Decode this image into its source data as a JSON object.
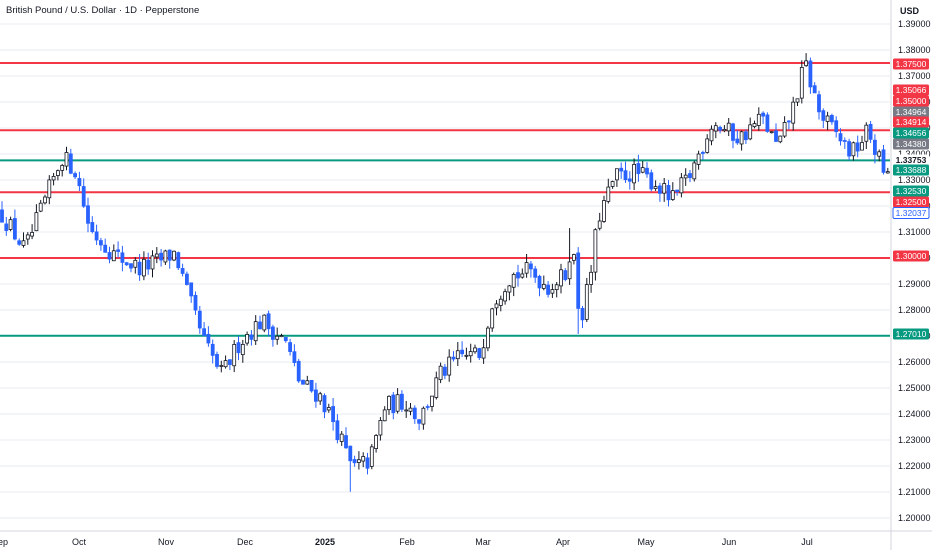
{
  "header": {
    "title": "British Pound / U.S. Dollar · 1D · Pepperstone",
    "currency": "USD"
  },
  "colors": {
    "up": "#ffffff",
    "up_border": "#131722",
    "down": "#2962ff",
    "red_line": "#f23645",
    "green_line": "#089981",
    "gray_tag": "#787b86",
    "grid": "#e9ebf0"
  },
  "chart_data": {
    "type": "candlestick",
    "title": "British Pound / U.S. Dollar · 1D · Pepperstone",
    "ylabel": "USD",
    "ylim": [
      1.195,
      1.395
    ],
    "yticks": [
      "1.39000",
      "1.38000",
      "1.37000",
      "1.36000",
      "1.35000",
      "1.34000",
      "1.33000",
      "1.32000",
      "1.31000",
      "1.30000",
      "1.29000",
      "1.28000",
      "1.27000",
      "1.26000",
      "1.25000",
      "1.24000",
      "1.23000",
      "1.22000",
      "1.21000",
      "1.20000"
    ],
    "x_labels": [
      "Sep",
      "Oct",
      "Nov",
      "Dec",
      "2025",
      "Feb",
      "Mar",
      "Apr",
      "May",
      "Jun",
      "Jul"
    ],
    "grid": true,
    "horizontal_levels": [
      {
        "value": 1.375,
        "color": "red"
      },
      {
        "value": 1.34914,
        "color": "red"
      },
      {
        "value": 1.33753,
        "color": "green"
      },
      {
        "value": 1.3253,
        "color": "red"
      },
      {
        "value": 1.3,
        "color": "red"
      },
      {
        "value": 1.2701,
        "color": "green"
      }
    ],
    "price_tags": [
      {
        "label": "1.37500",
        "value": 1.375,
        "style": "red"
      },
      {
        "label": "1.35066",
        "value": 1.35066,
        "style": "red"
      },
      {
        "label": "1.35000",
        "value": 1.35,
        "style": "red"
      },
      {
        "label": "1.34964",
        "value": 1.34964,
        "style": "gray"
      },
      {
        "label": "1.34914",
        "value": 1.34914,
        "style": "red"
      },
      {
        "label": "1.34656",
        "value": 1.34656,
        "style": "green"
      },
      {
        "label": "1.34380",
        "value": 1.3438,
        "style": "gray"
      },
      {
        "label": "1.33753",
        "value": 1.33753,
        "style": "plain"
      },
      {
        "label": "1.33688",
        "value": 1.33688,
        "style": "green"
      },
      {
        "label": "1.32530",
        "value": 1.3253,
        "style": "green"
      },
      {
        "label": "1.32500",
        "value": 1.325,
        "style": "red"
      },
      {
        "label": "1.32037",
        "value": 1.32037,
        "style": "outline"
      },
      {
        "label": "1.30000",
        "value": 1.3,
        "style": "red"
      },
      {
        "label": "1.27010",
        "value": 1.2701,
        "style": "green"
      }
    ],
    "series": [
      {
        "waypoints": [
          {
            "x": 0,
            "close": 1.318
          },
          {
            "x": 10,
            "close": 1.312
          },
          {
            "x": 25,
            "close": 1.303
          },
          {
            "x": 45,
            "close": 1.322
          },
          {
            "x": 62,
            "close": 1.339
          },
          {
            "x": 75,
            "close": 1.334
          },
          {
            "x": 90,
            "close": 1.311
          },
          {
            "x": 115,
            "close": 1.301
          },
          {
            "x": 140,
            "close": 1.296
          },
          {
            "x": 160,
            "close": 1.299
          },
          {
            "x": 175,
            "close": 1.302
          },
          {
            "x": 190,
            "close": 1.283
          },
          {
            "x": 205,
            "close": 1.267
          },
          {
            "x": 222,
            "close": 1.255
          },
          {
            "x": 240,
            "close": 1.268
          },
          {
            "x": 262,
            "close": 1.276
          },
          {
            "x": 285,
            "close": 1.268
          },
          {
            "x": 300,
            "close": 1.252
          },
          {
            "x": 320,
            "close": 1.247
          },
          {
            "x": 335,
            "close": 1.236
          },
          {
            "x": 352,
            "close": 1.219
          },
          {
            "x": 370,
            "close": 1.222
          },
          {
            "x": 385,
            "close": 1.243
          },
          {
            "x": 405,
            "close": 1.245
          },
          {
            "x": 420,
            "close": 1.238
          },
          {
            "x": 440,
            "close": 1.255
          },
          {
            "x": 460,
            "close": 1.262
          },
          {
            "x": 480,
            "close": 1.263
          },
          {
            "x": 492,
            "close": 1.283
          },
          {
            "x": 510,
            "close": 1.293
          },
          {
            "x": 530,
            "close": 1.295
          },
          {
            "x": 548,
            "close": 1.289
          },
          {
            "x": 565,
            "close": 1.293
          },
          {
            "x": 572,
            "close": 1.307
          },
          {
            "x": 580,
            "close": 1.275
          },
          {
            "x": 590,
            "close": 1.292
          },
          {
            "x": 598,
            "close": 1.315
          },
          {
            "x": 615,
            "close": 1.331
          },
          {
            "x": 635,
            "close": 1.333
          },
          {
            "x": 655,
            "close": 1.329
          },
          {
            "x": 672,
            "close": 1.322
          },
          {
            "x": 690,
            "close": 1.332
          },
          {
            "x": 712,
            "close": 1.352
          },
          {
            "x": 740,
            "close": 1.346
          },
          {
            "x": 762,
            "close": 1.354
          },
          {
            "x": 778,
            "close": 1.342
          },
          {
            "x": 795,
            "close": 1.36
          },
          {
            "x": 805,
            "close": 1.375
          },
          {
            "x": 820,
            "close": 1.355
          },
          {
            "x": 838,
            "close": 1.347
          },
          {
            "x": 852,
            "close": 1.34
          },
          {
            "x": 868,
            "close": 1.349
          },
          {
            "x": 878,
            "close": 1.339
          },
          {
            "x": 888,
            "close": 1.33
          },
          {
            "x": 891,
            "close": 1.3204
          }
        ],
        "low_spikes": [
          {
            "x": 350,
            "low": 1.2101
          },
          {
            "x": 579,
            "low": 1.2708
          }
        ],
        "high_spikes": [
          {
            "x": 806,
            "high": 1.3788
          },
          {
            "x": 570,
            "high": 1.3115
          }
        ]
      }
    ]
  }
}
